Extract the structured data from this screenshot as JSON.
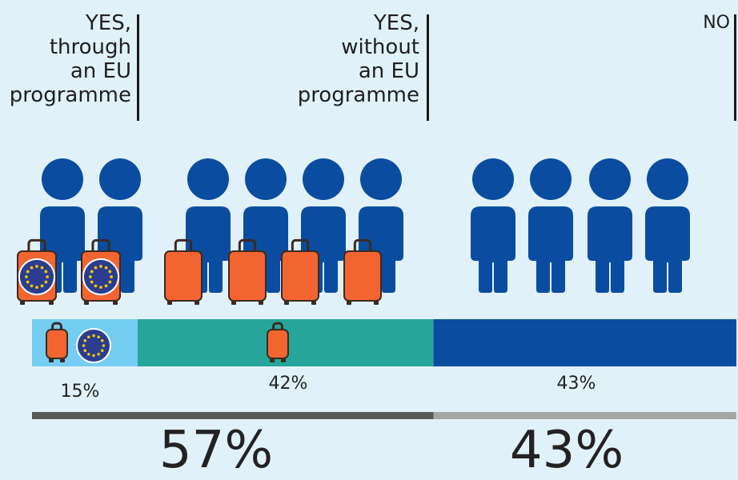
{
  "colors": {
    "background": "#e1f1fa",
    "person": "#0a4da0",
    "suitcase": "#f26531",
    "suitcase_dark": "#3a2a22",
    "eu_blue": "#2a3d8f",
    "eu_star": "#f6c500",
    "bar_eu_programme": "#74cdf2",
    "bar_without_programme": "#26a69a",
    "bar_no": "#0a4da0",
    "total_yes": "#595959",
    "total_no": "#a6a6a6"
  },
  "labels": {
    "yes_eu": [
      "YES,",
      "through",
      "an EU",
      "programme"
    ],
    "yes_no_eu": [
      "YES,",
      "without",
      "an EU",
      "programme"
    ],
    "no": [
      "NO"
    ]
  },
  "chart_data": {
    "type": "bar",
    "orientation": "horizontal-stacked",
    "categories": [
      "YES, through an EU programme",
      "YES, without an EU programme",
      "NO"
    ],
    "values": [
      15,
      42,
      43
    ],
    "value_labels": [
      "15%",
      "42%",
      "43%"
    ],
    "totals": [
      {
        "label": "57%",
        "value": 57
      },
      {
        "label": "43%",
        "value": 43
      }
    ],
    "icons": {
      "people": [
        2,
        4,
        4
      ],
      "suitcases_with_eu_flag": [
        2,
        0,
        0
      ],
      "suitcases_plain": [
        0,
        4,
        0
      ]
    }
  }
}
